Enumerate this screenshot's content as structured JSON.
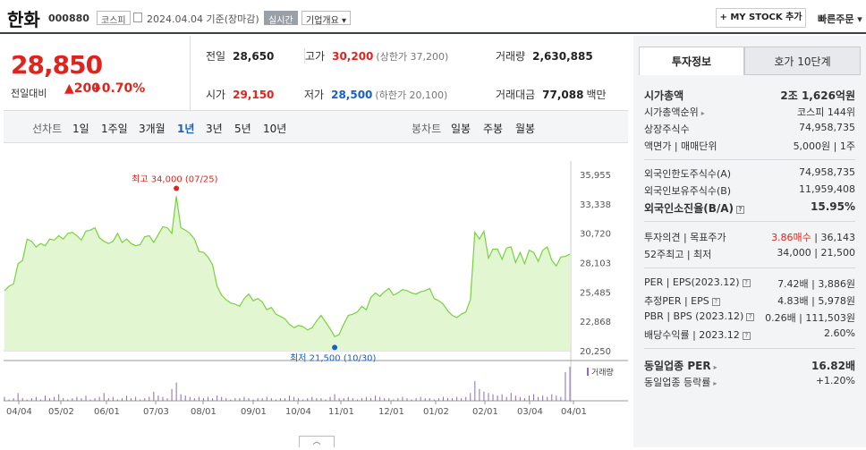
{
  "header": {
    "title": "한화",
    "code": "000880",
    "market": "코스피",
    "date": "2024.04.04 기준(장마감)",
    "realtime": "실시간",
    "company_overview": "기업개요 ▾",
    "mystock_button": "+ MY STOCK 추가",
    "quick_order": "빠른주문 ▾"
  },
  "quote": {
    "price": "28,850",
    "change_label": "전일대비",
    "change_value": "▲200",
    "change_pct": "+0.70%",
    "prev_close_label": "전일",
    "prev_close": "28,650",
    "high_label": "고가",
    "high": "30,200",
    "upper_limit": "(상한가 37,200)",
    "volume_label": "거래량",
    "volume": "2,630,885",
    "open_label": "시가",
    "open": "29,150",
    "low_label": "저가",
    "low": "28,500",
    "lower_limit": "(하한가 20,100)",
    "amount_label": "거래대금",
    "amount": "77,088",
    "amount_unit": "백만"
  },
  "periods": {
    "label": "선차트",
    "items": [
      "1일",
      "1주일",
      "3개월",
      "1년",
      "3년",
      "5년",
      "10년"
    ],
    "active": "1년",
    "candle_label": "봉차트",
    "candle_items": [
      "일봉",
      "주봉",
      "월봉"
    ]
  },
  "chart_data": {
    "type": "area",
    "y_ticks": [
      "35,955",
      "33,338",
      "30,720",
      "28,103",
      "25,485",
      "22,868",
      "20,250"
    ],
    "ylim": [
      20250,
      35955
    ],
    "x_ticks": [
      "04/04",
      "05/02",
      "06/01",
      "07/03",
      "08/01",
      "09/01",
      "10/04",
      "11/01",
      "12/01",
      "01/02",
      "02/01",
      "03/04",
      "04/01"
    ],
    "high_annotation": "최고 34,000 (07/25)",
    "low_annotation": "최저 21,500 (10/30)",
    "volume_legend": "거래량",
    "series": [
      {
        "values": [
          25600,
          26000,
          26200,
          28000,
          28300,
          30200,
          30000,
          29500,
          29800,
          29600,
          30200,
          30100,
          30500,
          30200,
          30700,
          30800,
          30500,
          30100,
          30900,
          31000,
          31200,
          30300,
          30000,
          29800,
          30000,
          30700,
          29900,
          30200,
          29800,
          29600,
          29700,
          30400,
          30500,
          29900,
          30600,
          31300,
          31200,
          30700,
          34000,
          31200,
          31000,
          30700,
          30200,
          29100,
          29000,
          28600,
          27900,
          26000,
          25200,
          24800,
          24500,
          24400,
          24200,
          24900,
          25300,
          24700,
          24900,
          24600,
          23900,
          24100,
          23500,
          23300,
          23100,
          22600,
          22300,
          22500,
          22400,
          22100,
          22300,
          22900,
          23400,
          22800,
          22200,
          21500,
          21700,
          22600,
          23400,
          23500,
          23700,
          24200,
          23900,
          25000,
          25400,
          25100,
          25500,
          25800,
          25200,
          25400,
          25700,
          25600,
          25400,
          25300,
          25500,
          25600,
          25800,
          24900,
          24700,
          24400,
          23800,
          23400,
          23200,
          23500,
          23700,
          24800,
          30800,
          30200,
          30900,
          28500,
          29300,
          29300,
          28400,
          29400,
          29500,
          28100,
          29000,
          28000,
          29200,
          29000,
          28200,
          29200,
          29500,
          28300,
          27800,
          28600,
          28650,
          28850
        ],
        "volumes": [
          3,
          1,
          2,
          6,
          2,
          1,
          2,
          3,
          1,
          4,
          2,
          3,
          5,
          2,
          1,
          2,
          3,
          2,
          4,
          1,
          2,
          3,
          6,
          2,
          3,
          1,
          2,
          4,
          2,
          3,
          1,
          2,
          3,
          7,
          4,
          3,
          2,
          9,
          14,
          5,
          4,
          3,
          2,
          3,
          2,
          3,
          2,
          4,
          3,
          2,
          1,
          2,
          2,
          3,
          2,
          1,
          2,
          2,
          3,
          2,
          1,
          2,
          2,
          4,
          3,
          2,
          1,
          2,
          3,
          2,
          2,
          1,
          3,
          5,
          2,
          2,
          3,
          2,
          1,
          2,
          3,
          2,
          4,
          3,
          2,
          2,
          1,
          2,
          3,
          2,
          1,
          2,
          3,
          2,
          2,
          1,
          2,
          3,
          2,
          2,
          3,
          2,
          3,
          6,
          15,
          9,
          7,
          6,
          5,
          4,
          5,
          3,
          6,
          4,
          3,
          2,
          4,
          5,
          3,
          4,
          3,
          5,
          4,
          3,
          22,
          26
        ]
      }
    ]
  },
  "invest_panel": {
    "tab_active": "투자정보",
    "tab_other": "호가 10단계",
    "rows1": [
      {
        "label": "시가총액",
        "value": "2조 1,626억원",
        "bold": true
      },
      {
        "label": "시가총액순위",
        "value": "코스피 144위"
      },
      {
        "label": "상장주식수",
        "value": "74,958,735"
      },
      {
        "label": "액면가 | 매매단위",
        "value": "5,000원 | 1주"
      }
    ],
    "rows2": [
      {
        "label": "외국인한도주식수(A)",
        "value": "74,958,735"
      },
      {
        "label": "외국인보유주식수(B)",
        "value": "11,959,408"
      },
      {
        "label": "외국인소진율(B/A)",
        "value": "15.95%",
        "bold": true
      }
    ],
    "opinion_label": "투자의견 | 목표주가",
    "opinion_value": "3.86매수",
    "target_price": "| 36,143",
    "wk52_label": "52주최고 | 최저",
    "wk52_value": "34,000 | 21,500",
    "per_label": "PER | EPS(2023.12)",
    "per_value": "7.42배 | 3,886원",
    "eper_label": "추정PER | EPS",
    "eper_value": "4.83배 | 5,978원",
    "pbr_label": "PBR | BPS (2023.12)",
    "pbr_value": "0.26배 | 111,503원",
    "div_label": "배당수익률 | 2023.12",
    "div_value": "2.60%",
    "sector_per_label": "동일업종 PER",
    "sector_per_value": "16.82배",
    "sector_rate_label": "동일업종 등락률",
    "sector_rate_value": "+1.20%"
  },
  "colors": {
    "up": "#e0241d",
    "down": "#1761c4",
    "line": "#78d23c",
    "fill": "#e2f6d2",
    "volume": "#8c6bb8"
  }
}
